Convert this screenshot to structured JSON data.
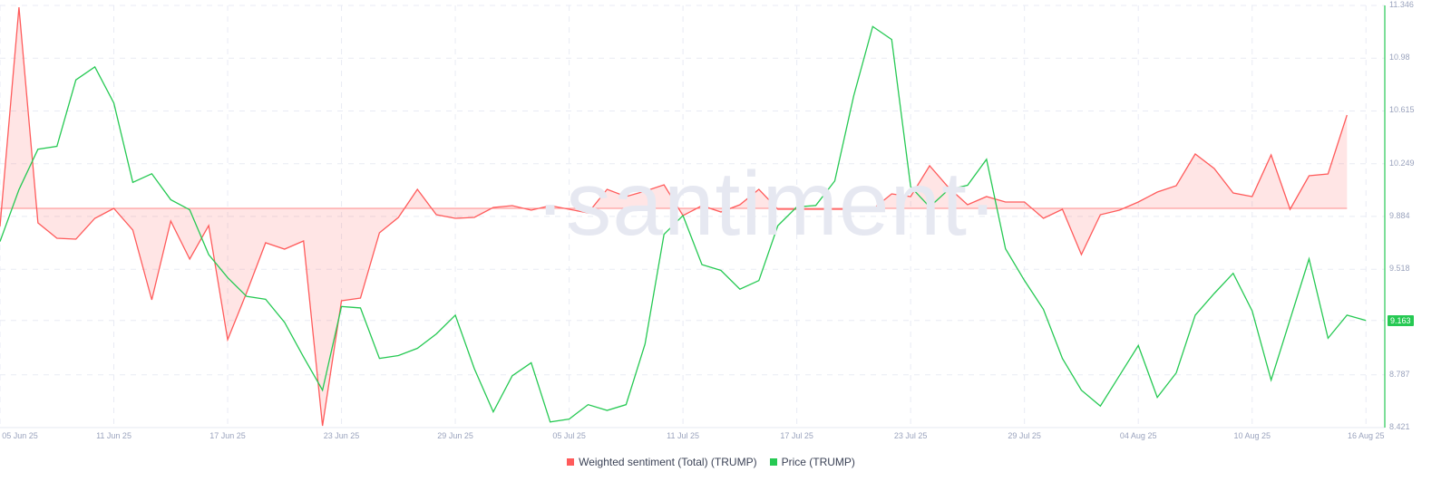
{
  "watermark": "·santiment·",
  "legend": [
    {
      "label": "Weighted sentiment (Total) (TRUMP)",
      "color": "#ff5b5b"
    },
    {
      "label": "Price (TRUMP)",
      "color": "#26c953"
    }
  ],
  "current_price_badge": "9.163",
  "y_axis_right": {
    "ticks": [
      "11.346",
      "10.98",
      "10.615",
      "10.249",
      "9.884",
      "9.518",
      "9.163",
      "8.787",
      "8.421"
    ]
  },
  "x_axis": {
    "ticks": [
      "05 Jun 25",
      "11 Jun 25",
      "17 Jun 25",
      "23 Jun 25",
      "29 Jun 25",
      "05 Jul 25",
      "11 Jul 25",
      "17 Jul 25",
      "23 Jul 25",
      "29 Jul 25",
      "04 Aug 25",
      "10 Aug 25",
      "16 Aug 25"
    ]
  },
  "chart_data": {
    "type": "line",
    "title": "",
    "xlabel": "",
    "ylabel": "",
    "x_start": "05 Jun 25",
    "x_end": "16 Aug 25",
    "x_ticks": [
      "05 Jun 25",
      "11 Jun 25",
      "17 Jun 25",
      "23 Jun 25",
      "29 Jun 25",
      "05 Jul 25",
      "11 Jul 25",
      "17 Jul 25",
      "23 Jul 25",
      "29 Jul 25",
      "04 Aug 25",
      "10 Aug 25",
      "16 Aug 25"
    ],
    "price_axis": {
      "ylim": [
        8.421,
        11.346
      ],
      "ticks": [
        11.346,
        10.98,
        10.615,
        10.249,
        9.884,
        9.518,
        9.163,
        8.787,
        8.421
      ],
      "position": "right"
    },
    "grid": true,
    "legend_position": "bottom",
    "series": [
      {
        "name": "Weighted sentiment (Total) (TRUMP)",
        "type": "area",
        "color": "#ff5b5b",
        "baseline": 0,
        "values": [
          -0.2,
          2.22,
          -0.16,
          -0.33,
          -0.34,
          -0.11,
          0.0,
          -0.24,
          -1.01,
          -0.14,
          -0.56,
          -0.19,
          -1.45,
          -0.93,
          -0.38,
          -0.45,
          -0.36,
          -2.4,
          -1.02,
          -0.99,
          -0.27,
          -0.1,
          0.21,
          -0.07,
          -0.11,
          -0.1,
          0.01,
          0.03,
          -0.02,
          0.03,
          -0.01,
          -0.05,
          0.21,
          0.13,
          0.19,
          0.26,
          -0.08,
          0.03,
          -0.04,
          0.04,
          0.21,
          -0.01,
          -0.01,
          -0.01,
          -0.01,
          -0.01,
          -0.01,
          0.16,
          0.13,
          0.47,
          0.23,
          0.04,
          0.13,
          0.07,
          0.07,
          -0.11,
          -0.01,
          -0.51,
          -0.07,
          -0.02,
          0.07,
          0.18,
          0.25,
          0.6,
          0.44,
          0.17,
          0.13,
          0.59,
          -0.01,
          0.36,
          0.38,
          1.03
        ]
      },
      {
        "name": "Price (TRUMP)",
        "type": "line",
        "color": "#26c953",
        "values": [
          9.71,
          10.07,
          10.35,
          10.37,
          10.83,
          10.92,
          10.67,
          10.12,
          10.18,
          10.0,
          9.93,
          9.62,
          9.46,
          9.33,
          9.31,
          9.15,
          8.91,
          8.68,
          9.26,
          9.25,
          8.9,
          8.92,
          8.97,
          9.07,
          9.2,
          8.83,
          8.53,
          8.78,
          8.87,
          8.46,
          8.48,
          8.58,
          8.54,
          8.58,
          9.0,
          9.76,
          9.89,
          9.55,
          9.51,
          9.38,
          9.44,
          9.82,
          9.95,
          9.96,
          10.13,
          10.72,
          11.2,
          11.11,
          10.09,
          9.95,
          10.07,
          10.1,
          10.28,
          9.66,
          9.44,
          9.24,
          8.9,
          8.68,
          8.57,
          8.78,
          8.99,
          8.63,
          8.8,
          9.2,
          9.35,
          9.49,
          9.23,
          8.75,
          9.17,
          9.59,
          9.04,
          9.2,
          9.163
        ]
      }
    ]
  }
}
